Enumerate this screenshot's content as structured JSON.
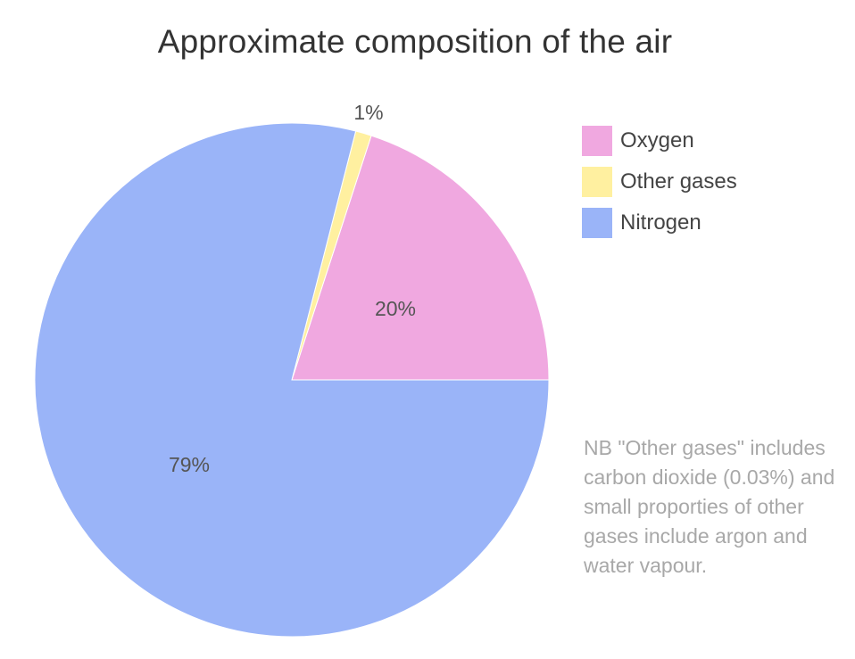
{
  "chart_data": {
    "type": "pie",
    "title": "Approximate composition of the air",
    "slices": [
      {
        "name": "Oxygen",
        "value": 20,
        "label": "20%",
        "color": "#f0a8e0"
      },
      {
        "name": "Other gases",
        "value": 1,
        "label": "1%",
        "color": "#fff0a0"
      },
      {
        "name": "Nitrogen",
        "value": 79,
        "label": "79%",
        "color": "#9ab4f8"
      }
    ],
    "legend_position": "right",
    "legend": [
      "Oxygen",
      "Other gases",
      "Nitrogen"
    ],
    "note": "NB \"Other gases\" includes carbon dioxide (0.03%) and small proporties of other gases include argon and water vapour."
  }
}
